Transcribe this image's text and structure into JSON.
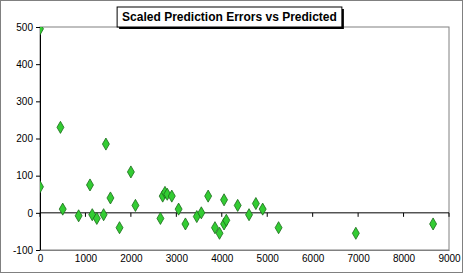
{
  "chart_data": {
    "type": "scatter",
    "title": "Scaled Prediction Errors vs Predicted",
    "x": [
      0,
      0,
      450,
      500,
      850,
      1100,
      1150,
      1250,
      1400,
      1450,
      1550,
      1750,
      2000,
      2100,
      2650,
      2700,
      2750,
      2800,
      2900,
      3050,
      3200,
      3450,
      3550,
      3700,
      3850,
      3950,
      4050,
      4050,
      4100,
      4350,
      4600,
      4750,
      4900,
      5250,
      6950,
      8650
    ],
    "values": [
      495,
      70,
      230,
      10,
      -8,
      75,
      -5,
      -15,
      -5,
      185,
      40,
      -40,
      110,
      20,
      -15,
      45,
      55,
      50,
      45,
      10,
      -30,
      -10,
      0,
      45,
      -40,
      -55,
      35,
      -30,
      -20,
      20,
      -5,
      25,
      10,
      -40,
      -55,
      -30
    ],
    "color": "#33cc33",
    "marker": "diamond",
    "grid": false,
    "xlim": [
      0,
      9000
    ],
    "xticks": [
      0,
      1000,
      2000,
      3000,
      4000,
      5000,
      6000,
      7000,
      8000,
      9000
    ],
    "ylim": [
      -100,
      500
    ],
    "yticks": [
      -100,
      0,
      100,
      200,
      300,
      400,
      500
    ]
  }
}
